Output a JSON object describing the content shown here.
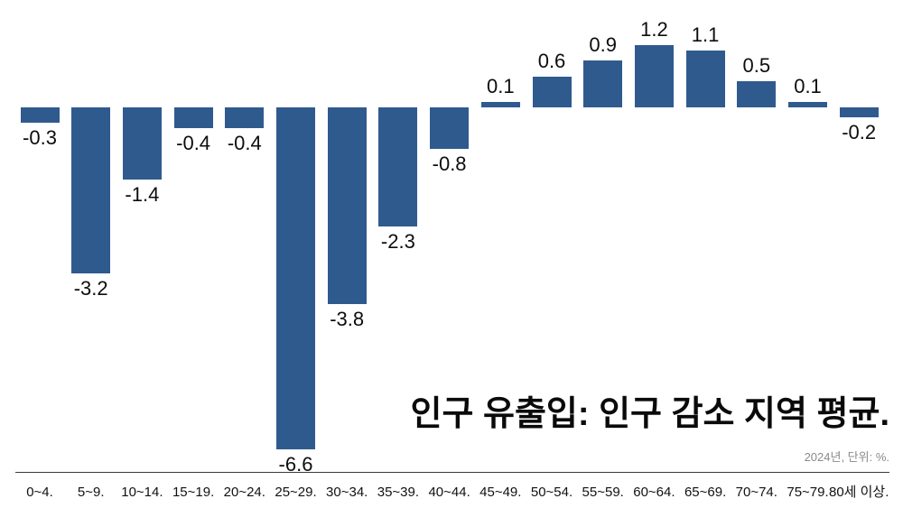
{
  "chart_data": {
    "type": "bar",
    "title": "인구 유출입: 인구 감소 지역 평균.",
    "source_note": "2024년, 단위: %.",
    "categories": [
      "0~4.",
      "5~9.",
      "10~14.",
      "15~19.",
      "20~24.",
      "25~29.",
      "30~34.",
      "35~39.",
      "40~44.",
      "45~49.",
      "50~54.",
      "55~59.",
      "60~64.",
      "65~69.",
      "70~74.",
      "75~79.",
      "80세 이상."
    ],
    "values": [
      -0.3,
      -3.2,
      -1.4,
      -0.4,
      -0.4,
      -6.6,
      -3.8,
      -2.3,
      -0.8,
      0.1,
      0.6,
      0.9,
      1.2,
      1.1,
      0.5,
      0.1,
      -0.2
    ],
    "bar_color": "#2F5A8E",
    "value_label_color": "#0d0d0d",
    "ylim": [
      -7.2,
      2.2
    ],
    "grid": false,
    "legend": false,
    "value_labels": true,
    "xlabel": "",
    "ylabel": ""
  }
}
